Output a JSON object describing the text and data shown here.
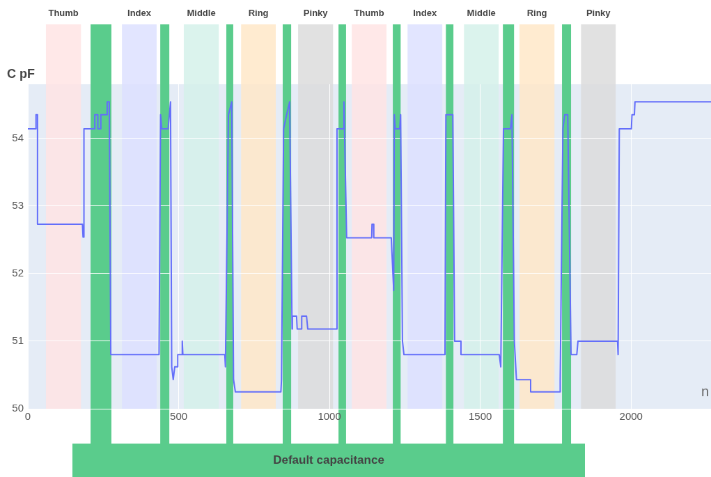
{
  "chart_data": {
    "type": "line",
    "xlabel": "n",
    "ylabel": "C pF",
    "xlim": [
      0,
      2265
    ],
    "xticks": [
      0,
      500,
      1000,
      1500,
      2000
    ],
    "ylim": [
      50,
      54.8
    ],
    "yticks": [
      50,
      51,
      52,
      53,
      54
    ],
    "grid": true,
    "legend": false,
    "marker": "none",
    "line_style": "solid",
    "series": [
      {
        "color": "#636efa",
        "x": [
          0,
          27,
          27,
          32,
          32,
          181,
          183,
          186,
          186,
          222,
          222,
          232,
          232,
          242,
          242,
          263,
          263,
          270,
          275,
          435,
          440,
          444,
          465,
          473,
          477,
          482,
          487,
          497,
          497,
          512,
          512,
          514,
          653,
          655,
          665,
          676,
          682,
          688,
          839,
          841,
          848,
          858,
          868,
          876,
          877,
          891,
          893,
          908,
          908,
          924,
          928,
          1023,
          1025,
          1046,
          1048,
          1057,
          1140,
          1141,
          1146,
          1147,
          1205,
          1207,
          1213,
          1215,
          1218,
          1233,
          1236,
          1242,
          1247,
          1383,
          1386,
          1409,
          1415,
          1436,
          1436,
          1563,
          1568,
          1577,
          1600,
          1605,
          1613,
          1620,
          1667,
          1667,
          1748,
          1765,
          1765,
          1774,
          1780,
          1790,
          1801,
          1820,
          1824,
          1955,
          1957,
          1961,
          2001,
          2003,
          2011,
          2013,
          2265
        ],
        "values": [
          54.14,
          54.14,
          54.35,
          54.35,
          52.73,
          52.73,
          52.54,
          52.54,
          54.14,
          54.14,
          54.35,
          54.35,
          54.14,
          54.14,
          54.35,
          54.35,
          54.54,
          54.54,
          50.8,
          50.8,
          54.35,
          54.14,
          54.14,
          54.54,
          50.62,
          50.43,
          50.62,
          50.62,
          50.8,
          50.8,
          51.0,
          50.8,
          50.8,
          50.62,
          54.35,
          54.54,
          50.43,
          50.25,
          50.25,
          50.43,
          54.14,
          54.35,
          54.54,
          51.18,
          51.37,
          51.37,
          51.18,
          51.18,
          51.37,
          51.37,
          51.18,
          51.18,
          54.14,
          54.14,
          54.54,
          52.53,
          52.53,
          52.73,
          52.73,
          52.53,
          52.53,
          52.32,
          51.75,
          54.35,
          54.14,
          54.14,
          54.35,
          51.0,
          50.8,
          50.8,
          54.35,
          54.35,
          51.0,
          51.0,
          50.8,
          50.8,
          50.62,
          54.14,
          54.14,
          54.35,
          51.0,
          50.43,
          50.43,
          50.25,
          50.25,
          50.25,
          50.43,
          54.14,
          54.35,
          54.35,
          50.8,
          50.8,
          51.0,
          51.0,
          50.8,
          54.14,
          54.14,
          54.35,
          54.35,
          54.54,
          54.54
        ]
      }
    ],
    "bands": [
      {
        "axis": "x",
        "from": 60,
        "to": 176,
        "label": "Thumb",
        "color": "#ffe4e4"
      },
      {
        "axis": "x",
        "from": 312,
        "to": 427,
        "label": "Index",
        "color": "#dde0ff"
      },
      {
        "axis": "x",
        "from": 517,
        "to": 633,
        "label": "Middle",
        "color": "#d5f1ea"
      },
      {
        "axis": "x",
        "from": 707,
        "to": 822,
        "label": "Ring",
        "color": "#ffe8c8"
      },
      {
        "axis": "x",
        "from": 896,
        "to": 1012,
        "label": "Pinky",
        "color": "#dcdcdc"
      },
      {
        "axis": "x",
        "from": 1074,
        "to": 1189,
        "label": "Thumb",
        "color": "#ffe4e4"
      },
      {
        "axis": "x",
        "from": 1259,
        "to": 1374,
        "label": "Index",
        "color": "#dde0ff"
      },
      {
        "axis": "x",
        "from": 1446,
        "to": 1561,
        "label": "Middle",
        "color": "#d5f1ea"
      },
      {
        "axis": "x",
        "from": 1630,
        "to": 1746,
        "label": "Ring",
        "color": "#ffe8c8"
      },
      {
        "axis": "x",
        "from": 1834,
        "to": 1949,
        "label": "Pinky",
        "color": "#dcdcdc"
      },
      {
        "axis": "x",
        "from": 208,
        "to": 277,
        "color": "#5acc8c"
      },
      {
        "axis": "x",
        "from": 439,
        "to": 469,
        "color": "#5acc8c"
      },
      {
        "axis": "x",
        "from": 658,
        "to": 681,
        "color": "#5acc8c"
      },
      {
        "axis": "x",
        "from": 845,
        "to": 873,
        "color": "#5acc8c"
      },
      {
        "axis": "x",
        "from": 1030,
        "to": 1055,
        "color": "#5acc8c"
      },
      {
        "axis": "x",
        "from": 1210,
        "to": 1236,
        "color": "#5acc8c"
      },
      {
        "axis": "x",
        "from": 1386,
        "to": 1411,
        "color": "#5acc8c"
      },
      {
        "axis": "x",
        "from": 1575,
        "to": 1612,
        "color": "#5acc8c"
      },
      {
        "axis": "x",
        "from": 1771,
        "to": 1801,
        "color": "#5acc8c"
      }
    ],
    "annotations": [
      "Default capacitance"
    ]
  }
}
